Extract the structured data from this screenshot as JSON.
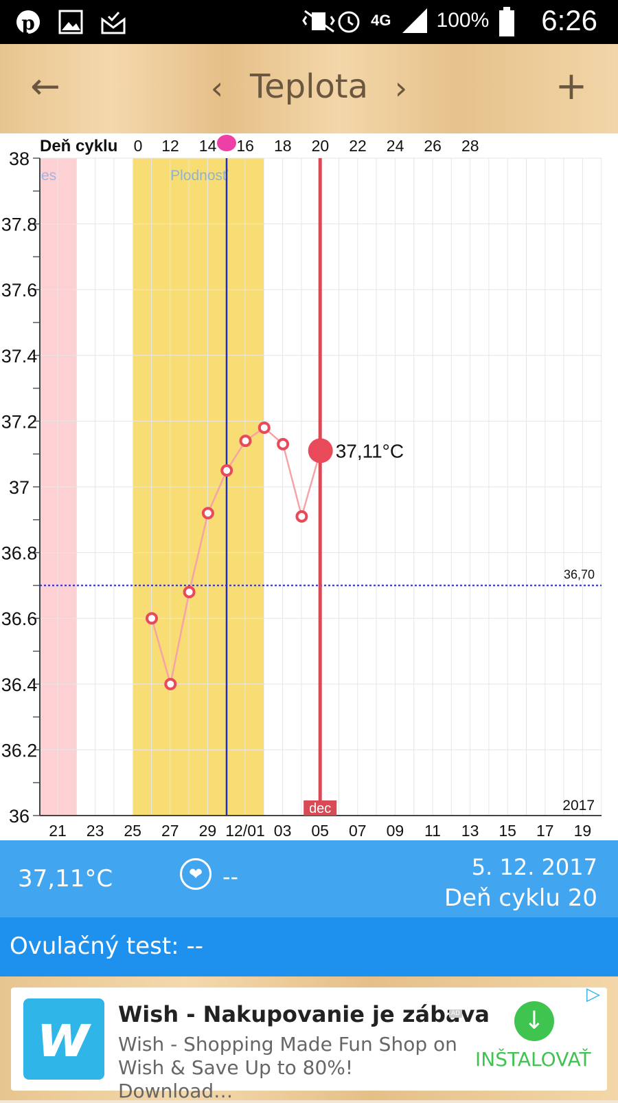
{
  "status_bar": {
    "battery": "100%",
    "time": "6:26",
    "network": "4G"
  },
  "header": {
    "title": "Teplota"
  },
  "chart_data": {
    "type": "line",
    "cycle_axis_label": "Deň cyklu",
    "cycle_ticks": [
      "0",
      "12",
      "14",
      "16",
      "18",
      "20",
      "22",
      "24",
      "26",
      "28"
    ],
    "date_ticks": [
      "21",
      "23",
      "25",
      "27",
      "29",
      "12/01",
      "03",
      "05",
      "07",
      "09",
      "11",
      "13",
      "15",
      "17",
      "19"
    ],
    "y_ticks": [
      "38",
      "37.8",
      "37.6",
      "37.4",
      "37.2",
      "37",
      "36.8",
      "36.6",
      "36.4",
      "36.2",
      "36"
    ],
    "ylim": [
      36,
      38
    ],
    "year_label": "2017",
    "month_label": "dec",
    "fertility_label": "Plodnosť",
    "period_label": "es",
    "coverline": {
      "value": 36.7,
      "label": "36,70"
    },
    "series": [
      {
        "x": [
          "26",
          "27",
          "28",
          "29",
          "30",
          "12/01",
          "02",
          "03",
          "04",
          "05"
        ],
        "values": [
          36.6,
          36.4,
          36.68,
          36.92,
          37.05,
          37.14,
          37.18,
          37.13,
          36.91,
          37.11
        ]
      }
    ],
    "selected_point": {
      "x": "05",
      "value": 37.11,
      "label": "37,11°C"
    },
    "grid": true
  },
  "info": {
    "temperature": "37,11°C",
    "heart_value": "--",
    "date": "5. 12. 2017",
    "cycle_day": "Deň cyklu 20"
  },
  "ovulation": {
    "label": "Ovulačný test: --"
  },
  "ad": {
    "title": "Wish - Nakupovanie je zábava",
    "badge": "AD",
    "description": "Wish - Shopping Made Fun Shop on Wish & Save Up to 80%! Download…",
    "install_label": "INŠTALOVAŤ"
  },
  "colors": {
    "fertility_band": "#f8dc74",
    "period_band": "#fdd1d3",
    "data_line": "#f6a3a8",
    "point": "#e84a5a",
    "today_line": "#d94a57",
    "ovulation_line": "#1f2fbf",
    "coverline": "#2222cc",
    "info_bg": "#42a5f0",
    "ovul_bg": "#1e90ee"
  }
}
